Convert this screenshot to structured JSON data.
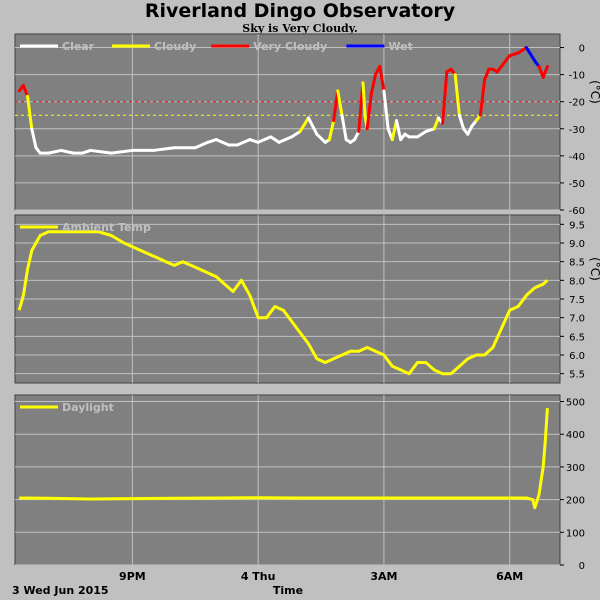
{
  "header": {
    "title": "Riverland Dingo Observatory",
    "subtitle": "Sky is Very Cloudy."
  },
  "footer": {
    "date_label": "3 Wed Jun 2015",
    "xlabel": "Time"
  },
  "x_ticks": [
    {
      "label": "9PM",
      "t": 3
    },
    {
      "label": "4 Thu",
      "t": 6
    },
    {
      "label": "3AM",
      "t": 9
    },
    {
      "label": "6AM",
      "t": 12
    }
  ],
  "colors": {
    "plot_bg": "#808080",
    "frame_bg": "#c0c0c0",
    "grid": "#c0c0c0",
    "clear": "#ffffff",
    "cloudy": "#ffff00",
    "very_cloudy": "#ff0000",
    "wet": "#0000ff"
  },
  "chart_data": [
    {
      "type": "line",
      "name": "sky",
      "ylabel": "(°C)",
      "ylim": [
        -60,
        5
      ],
      "yticks": [
        0,
        -10,
        -20,
        -30,
        -40,
        -50,
        -60
      ],
      "x_unit": "hours since 6PM",
      "xlim": [
        0.2,
        13.2
      ],
      "grid": true,
      "legend": [
        {
          "label": "Clear",
          "color": "#ffffff"
        },
        {
          "label": "Cloudy",
          "color": "#ffff00"
        },
        {
          "label": "Very Cloudy",
          "color": "#ff0000"
        },
        {
          "label": "Wet",
          "color": "#0000ff"
        }
      ],
      "thresholds": [
        {
          "value": -20,
          "color": "#ff0000"
        },
        {
          "value": -25,
          "color": "#ffff00"
        }
      ],
      "series": [
        {
          "x": [
            0.3,
            0.4,
            0.5,
            0.6,
            0.7,
            0.8,
            1.0,
            1.3,
            1.6,
            1.8,
            2.0,
            2.5,
            3.0,
            3.5,
            4.0,
            4.5,
            4.8,
            5.0,
            5.3,
            5.5,
            5.8,
            6.0,
            6.3,
            6.5,
            6.8,
            7.0,
            7.2,
            7.4,
            7.6,
            7.7,
            7.8,
            7.9,
            8.0,
            8.1,
            8.2,
            8.3,
            8.4,
            8.5,
            8.55,
            8.6,
            8.7,
            8.8,
            8.9,
            9.0,
            9.1,
            9.2,
            9.3,
            9.4,
            9.5,
            9.6,
            9.8,
            10.0,
            10.2,
            10.3,
            10.4,
            10.5,
            10.6,
            10.7,
            10.8,
            10.9,
            11.0,
            11.1,
            11.2,
            11.3,
            11.4,
            11.5,
            11.6,
            11.7,
            11.8,
            11.9,
            12.0,
            12.2,
            12.4,
            12.6,
            12.7,
            12.8,
            12.9
          ],
          "y": [
            -16,
            -14,
            -18,
            -30,
            -37,
            -39,
            -39,
            -38,
            -39,
            -39,
            -38,
            -39,
            -38,
            -38,
            -37,
            -37,
            -35,
            -34,
            -36,
            -36,
            -34,
            -35,
            -33,
            -35,
            -33,
            -31,
            -26,
            -32,
            -35,
            -34,
            -27,
            -16,
            -25,
            -34,
            -35,
            -34,
            -31,
            -13,
            -25,
            -30,
            -17,
            -10,
            -7,
            -16,
            -30,
            -34,
            -27,
            -34,
            -32,
            -33,
            -33,
            -31,
            -30,
            -26,
            -28,
            -9,
            -8,
            -10,
            -25,
            -30,
            -32,
            -29,
            -27,
            -25,
            -12,
            -8,
            -8,
            -9,
            -7,
            -5,
            -3,
            -2,
            0,
            -5,
            -7,
            -11,
            -7
          ],
          "state": [
            "very_cloudy",
            "very_cloudy",
            "very_cloudy",
            "cloudy",
            "clear",
            "clear",
            "clear",
            "clear",
            "clear",
            "clear",
            "clear",
            "clear",
            "clear",
            "clear",
            "clear",
            "clear",
            "clear",
            "clear",
            "clear",
            "clear",
            "clear",
            "clear",
            "clear",
            "clear",
            "clear",
            "clear",
            "cloudy",
            "clear",
            "clear",
            "clear",
            "cloudy",
            "very_cloudy",
            "cloudy",
            "clear",
            "clear",
            "clear",
            "clear",
            "very_cloudy",
            "cloudy",
            "cloudy",
            "very_cloudy",
            "very_cloudy",
            "very_cloudy",
            "very_cloudy",
            "clear",
            "clear",
            "cloudy",
            "clear",
            "clear",
            "clear",
            "clear",
            "clear",
            "clear",
            "cloudy",
            "clear",
            "very_cloudy",
            "very_cloudy",
            "very_cloudy",
            "cloudy",
            "clear",
            "clear",
            "clear",
            "clear",
            "cloudy",
            "very_cloudy",
            "very_cloudy",
            "very_cloudy",
            "very_cloudy",
            "very_cloudy",
            "very_cloudy",
            "very_cloudy",
            "very_cloudy",
            "very_cloudy",
            "wet",
            "wet",
            "very_cloudy",
            "very_cloudy"
          ]
        }
      ]
    },
    {
      "type": "line",
      "name": "ambient",
      "ylabel": "(°C)",
      "ylim": [
        5.25,
        9.75
      ],
      "yticks": [
        9.5,
        9.0,
        8.5,
        8.0,
        7.5,
        7.0,
        6.5,
        6.0,
        5.5
      ],
      "ytick_labels": [
        "9.5",
        "9.0",
        "8.5",
        "8.0",
        "7.5",
        "7.0",
        "6.5",
        "6.0",
        "5.5"
      ],
      "x_unit": "hours since 6PM",
      "xlim": [
        0.2,
        13.2
      ],
      "grid": true,
      "legend": [
        {
          "label": "Ambient Temp",
          "color": "#ffff00"
        }
      ],
      "series": [
        {
          "name": "Ambient Temp",
          "color": "#ffff00",
          "x": [
            0.3,
            0.4,
            0.5,
            0.6,
            0.8,
            1.0,
            1.3,
            1.6,
            1.9,
            2.2,
            2.5,
            2.8,
            3.0,
            3.2,
            3.4,
            3.6,
            3.8,
            4.0,
            4.2,
            4.4,
            4.6,
            4.8,
            5.0,
            5.2,
            5.4,
            5.6,
            5.8,
            6.0,
            6.2,
            6.4,
            6.6,
            6.8,
            7.0,
            7.2,
            7.4,
            7.6,
            7.8,
            8.0,
            8.2,
            8.4,
            8.6,
            8.8,
            9.0,
            9.2,
            9.4,
            9.6,
            9.8,
            10.0,
            10.2,
            10.4,
            10.6,
            10.8,
            11.0,
            11.2,
            11.4,
            11.6,
            11.8,
            12.0,
            12.2,
            12.4,
            12.6,
            12.8,
            12.9
          ],
          "y": [
            7.2,
            7.6,
            8.3,
            8.8,
            9.2,
            9.3,
            9.3,
            9.3,
            9.3,
            9.3,
            9.2,
            9.0,
            8.9,
            8.8,
            8.7,
            8.6,
            8.5,
            8.4,
            8.5,
            8.4,
            8.3,
            8.2,
            8.1,
            7.9,
            7.7,
            8.0,
            7.6,
            7.0,
            7.0,
            7.3,
            7.2,
            6.9,
            6.6,
            6.3,
            5.9,
            5.8,
            5.9,
            6.0,
            6.1,
            6.1,
            6.2,
            6.1,
            6.0,
            5.7,
            5.6,
            5.5,
            5.8,
            5.8,
            5.6,
            5.5,
            5.5,
            5.7,
            5.9,
            6.0,
            6.0,
            6.2,
            6.7,
            7.2,
            7.3,
            7.6,
            7.8,
            7.9,
            8.0
          ]
        }
      ]
    },
    {
      "type": "line",
      "name": "daylight",
      "ylim": [
        0,
        520
      ],
      "yticks": [
        500,
        400,
        300,
        200,
        100,
        0
      ],
      "x_unit": "hours since 6PM",
      "xlim": [
        0.2,
        13.2
      ],
      "grid": true,
      "legend": [
        {
          "label": "Daylight",
          "color": "#ffff00"
        }
      ],
      "series": [
        {
          "name": "Daylight",
          "color": "#ffff00",
          "x": [
            0.3,
            1.0,
            2.0,
            3.0,
            4.0,
            5.0,
            6.0,
            7.0,
            8.0,
            9.0,
            10.0,
            11.0,
            12.0,
            12.4,
            12.55,
            12.6,
            12.7,
            12.8,
            12.85,
            12.9
          ],
          "y": [
            205,
            204,
            202,
            203,
            204,
            205,
            206,
            205,
            205,
            205,
            205,
            205,
            205,
            205,
            200,
            175,
            215,
            300,
            380,
            480
          ]
        }
      ]
    }
  ]
}
